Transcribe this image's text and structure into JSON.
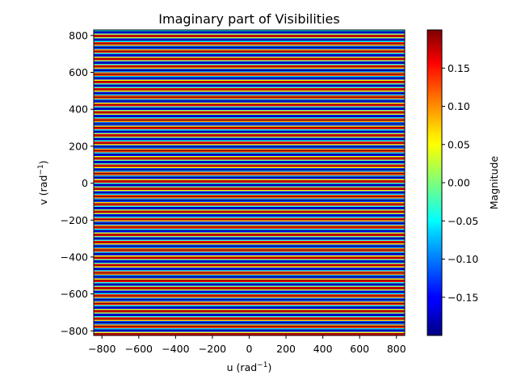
{
  "chart_data": {
    "type": "heatmap",
    "title": "Imaginary part of Visibilities",
    "xlabel": {
      "base": "u (rad",
      "exp": "−1",
      "close": ")"
    },
    "ylabel": {
      "base": "v (rad",
      "exp": "−1",
      "close": ")"
    },
    "xlim": [
      -845,
      845
    ],
    "ylim": [
      -825,
      830
    ],
    "xticks": [
      -800,
      -600,
      -400,
      -200,
      0,
      200,
      400,
      600,
      800
    ],
    "xtick_labels": [
      "−800",
      "−600",
      "−400",
      "−200",
      "0",
      "200",
      "400",
      "600",
      "800"
    ],
    "yticks": [
      -800,
      -600,
      -400,
      -200,
      0,
      200,
      400,
      600,
      800
    ],
    "ytick_labels": [
      "−800",
      "−600",
      "−400",
      "−200",
      "0",
      "200",
      "400",
      "600",
      "800"
    ],
    "pattern": {
      "description": "Stripes varying along v only",
      "function": "amplitude * sin(2*pi*(v - v_offset)/period)",
      "amplitude": 0.2,
      "period": 41.4,
      "v_offset": 0
    },
    "colormap": "jet",
    "colorbar": {
      "label": "Magnitude",
      "vmin": -0.2,
      "vmax": 0.2,
      "ticks": [
        -0.15,
        -0.1,
        -0.05,
        0.0,
        0.05,
        0.1,
        0.15
      ],
      "tick_labels": [
        "−0.15",
        "−0.10",
        "−0.05",
        "0.00",
        "0.05",
        "0.10",
        "0.15"
      ]
    },
    "grid": false
  }
}
